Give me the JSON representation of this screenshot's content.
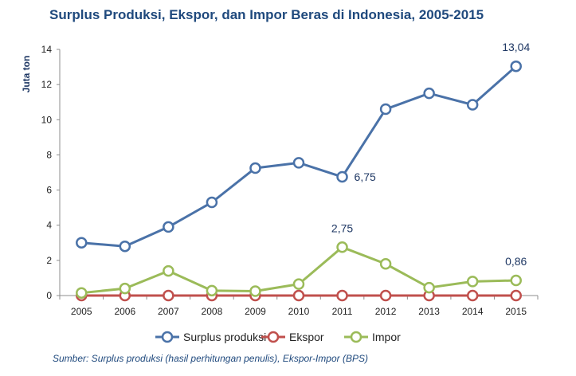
{
  "chart_data": {
    "type": "line",
    "title": "Surplus Produksi, Ekspor, dan Impor Beras di Indonesia, 2005-2015",
    "ylabel": "Juta ton",
    "xlabel": "",
    "ylim": [
      0,
      14
    ],
    "yticks": [
      0,
      2,
      4,
      6,
      8,
      10,
      12,
      14
    ],
    "categories": [
      "2005",
      "2006",
      "2007",
      "2008",
      "2009",
      "2010",
      "2011",
      "2012",
      "2013",
      "2014",
      "2015"
    ],
    "series": [
      {
        "name": "Surplus produksi",
        "color": "#4a72a8",
        "values": [
          3.0,
          2.8,
          3.9,
          5.3,
          7.25,
          7.55,
          6.75,
          10.6,
          11.5,
          10.85,
          13.04
        ]
      },
      {
        "name": "Ekspor",
        "color": "#c0504d",
        "values": [
          0.0,
          0.0,
          0.0,
          0.0,
          0.0,
          0.0,
          0.0,
          0.0,
          0.0,
          0.0,
          0.0
        ]
      },
      {
        "name": "Impor",
        "color": "#9bbb59",
        "values": [
          0.15,
          0.4,
          1.4,
          0.28,
          0.25,
          0.65,
          2.75,
          1.8,
          0.45,
          0.8,
          0.86
        ]
      }
    ],
    "annotations": [
      {
        "series": 0,
        "index": 10,
        "text": "13,04",
        "place": "above"
      },
      {
        "series": 0,
        "index": 6,
        "text": "6,75",
        "place": "right"
      },
      {
        "series": 2,
        "index": 6,
        "text": "2,75",
        "place": "above"
      },
      {
        "series": 2,
        "index": 10,
        "text": "0,86",
        "place": "above"
      }
    ],
    "grid": false,
    "legend": "bottom",
    "source": "Sumber: Surplus produksi (hasil perhitungan penulis), Ekspor-Impor (BPS)"
  }
}
